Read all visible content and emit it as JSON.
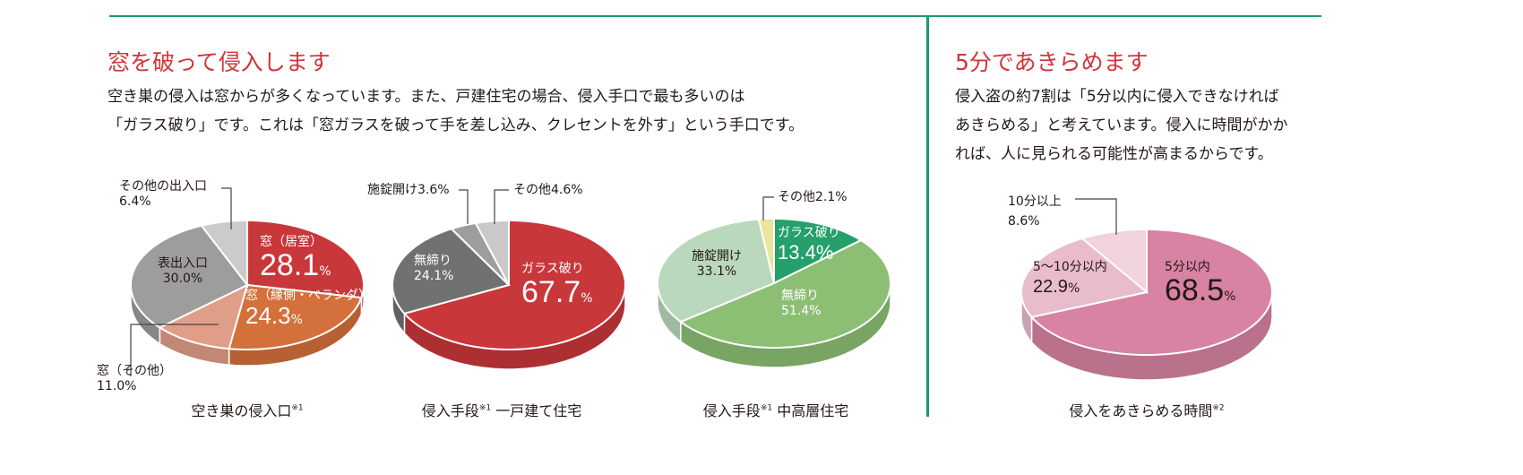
{
  "left": {
    "title": "窓を破って侵入します",
    "body": [
      "空き巣の侵入は窓からが多くなっています。また、戸建住宅の場合、侵入手口で最も多いのは",
      "「ガラス破り」です。これは「窓ガラスを破って手を差し込み、クレセントを外す」という手口です。"
    ]
  },
  "right": {
    "title": "5分であきらめます",
    "body": [
      "侵入盗の約7割は「5分以内に侵入できなければ",
      "あきらめる」と考えています。侵入に時間がかか",
      "れば、人に見られる可能性が高まるからです。"
    ]
  },
  "colors": {
    "accent_line": "#1a9a6a",
    "title": "#d0353a"
  },
  "chart_data": [
    {
      "type": "pie",
      "title": "空き巣の侵入口",
      "note": "※1",
      "labels": [
        "窓（居室）",
        "窓（縁側・ベランダ）",
        "窓（その他）",
        "表出入口",
        "その他の出入口"
      ],
      "values": [
        28.1,
        24.3,
        11.0,
        30.0,
        6.4
      ],
      "display": [
        "28.1",
        "24.3",
        "11.0%",
        "30.0%",
        "6.4%"
      ],
      "colors": [
        "#c8373a",
        "#d4703c",
        "#e09e88",
        "#9d9d9c",
        "#cbcbcb"
      ]
    },
    {
      "type": "pie",
      "title": "侵入手段",
      "note": "※1",
      "title2": "一戸建て住宅",
      "labels": [
        "ガラス破り",
        "無締り",
        "施錠開け",
        "その他"
      ],
      "values": [
        67.7,
        24.1,
        3.6,
        4.6
      ],
      "display": [
        "67.7",
        "24.1%",
        "施錠開け3.6%",
        "その他4.6%"
      ],
      "colors": [
        "#c8373a",
        "#727171",
        "#9d9d9c",
        "#c9c9c9"
      ]
    },
    {
      "type": "pie",
      "title": "侵入手段",
      "note": "※1",
      "title2": "中高層住宅",
      "labels": [
        "ガラス破り",
        "無締り",
        "施錠開け",
        "その他"
      ],
      "values": [
        13.4,
        51.4,
        33.1,
        2.1
      ],
      "display": [
        "13.4%",
        "51.4%",
        "33.1%",
        "その他2.1%"
      ],
      "colors": [
        "#25a06a",
        "#8cbf74",
        "#bad8bb",
        "#e9e59a"
      ]
    },
    {
      "type": "pie",
      "title": "侵入をあきらめる時間",
      "note": "※2",
      "labels": [
        "5分以内",
        "5〜10分以内",
        "10分以上"
      ],
      "values": [
        68.5,
        22.9,
        8.6
      ],
      "display": [
        "68.5",
        "22.9",
        "8.6%"
      ],
      "colors": [
        "#d883a3",
        "#e8bccb",
        "#f0d3dc"
      ]
    }
  ],
  "pct": "%"
}
